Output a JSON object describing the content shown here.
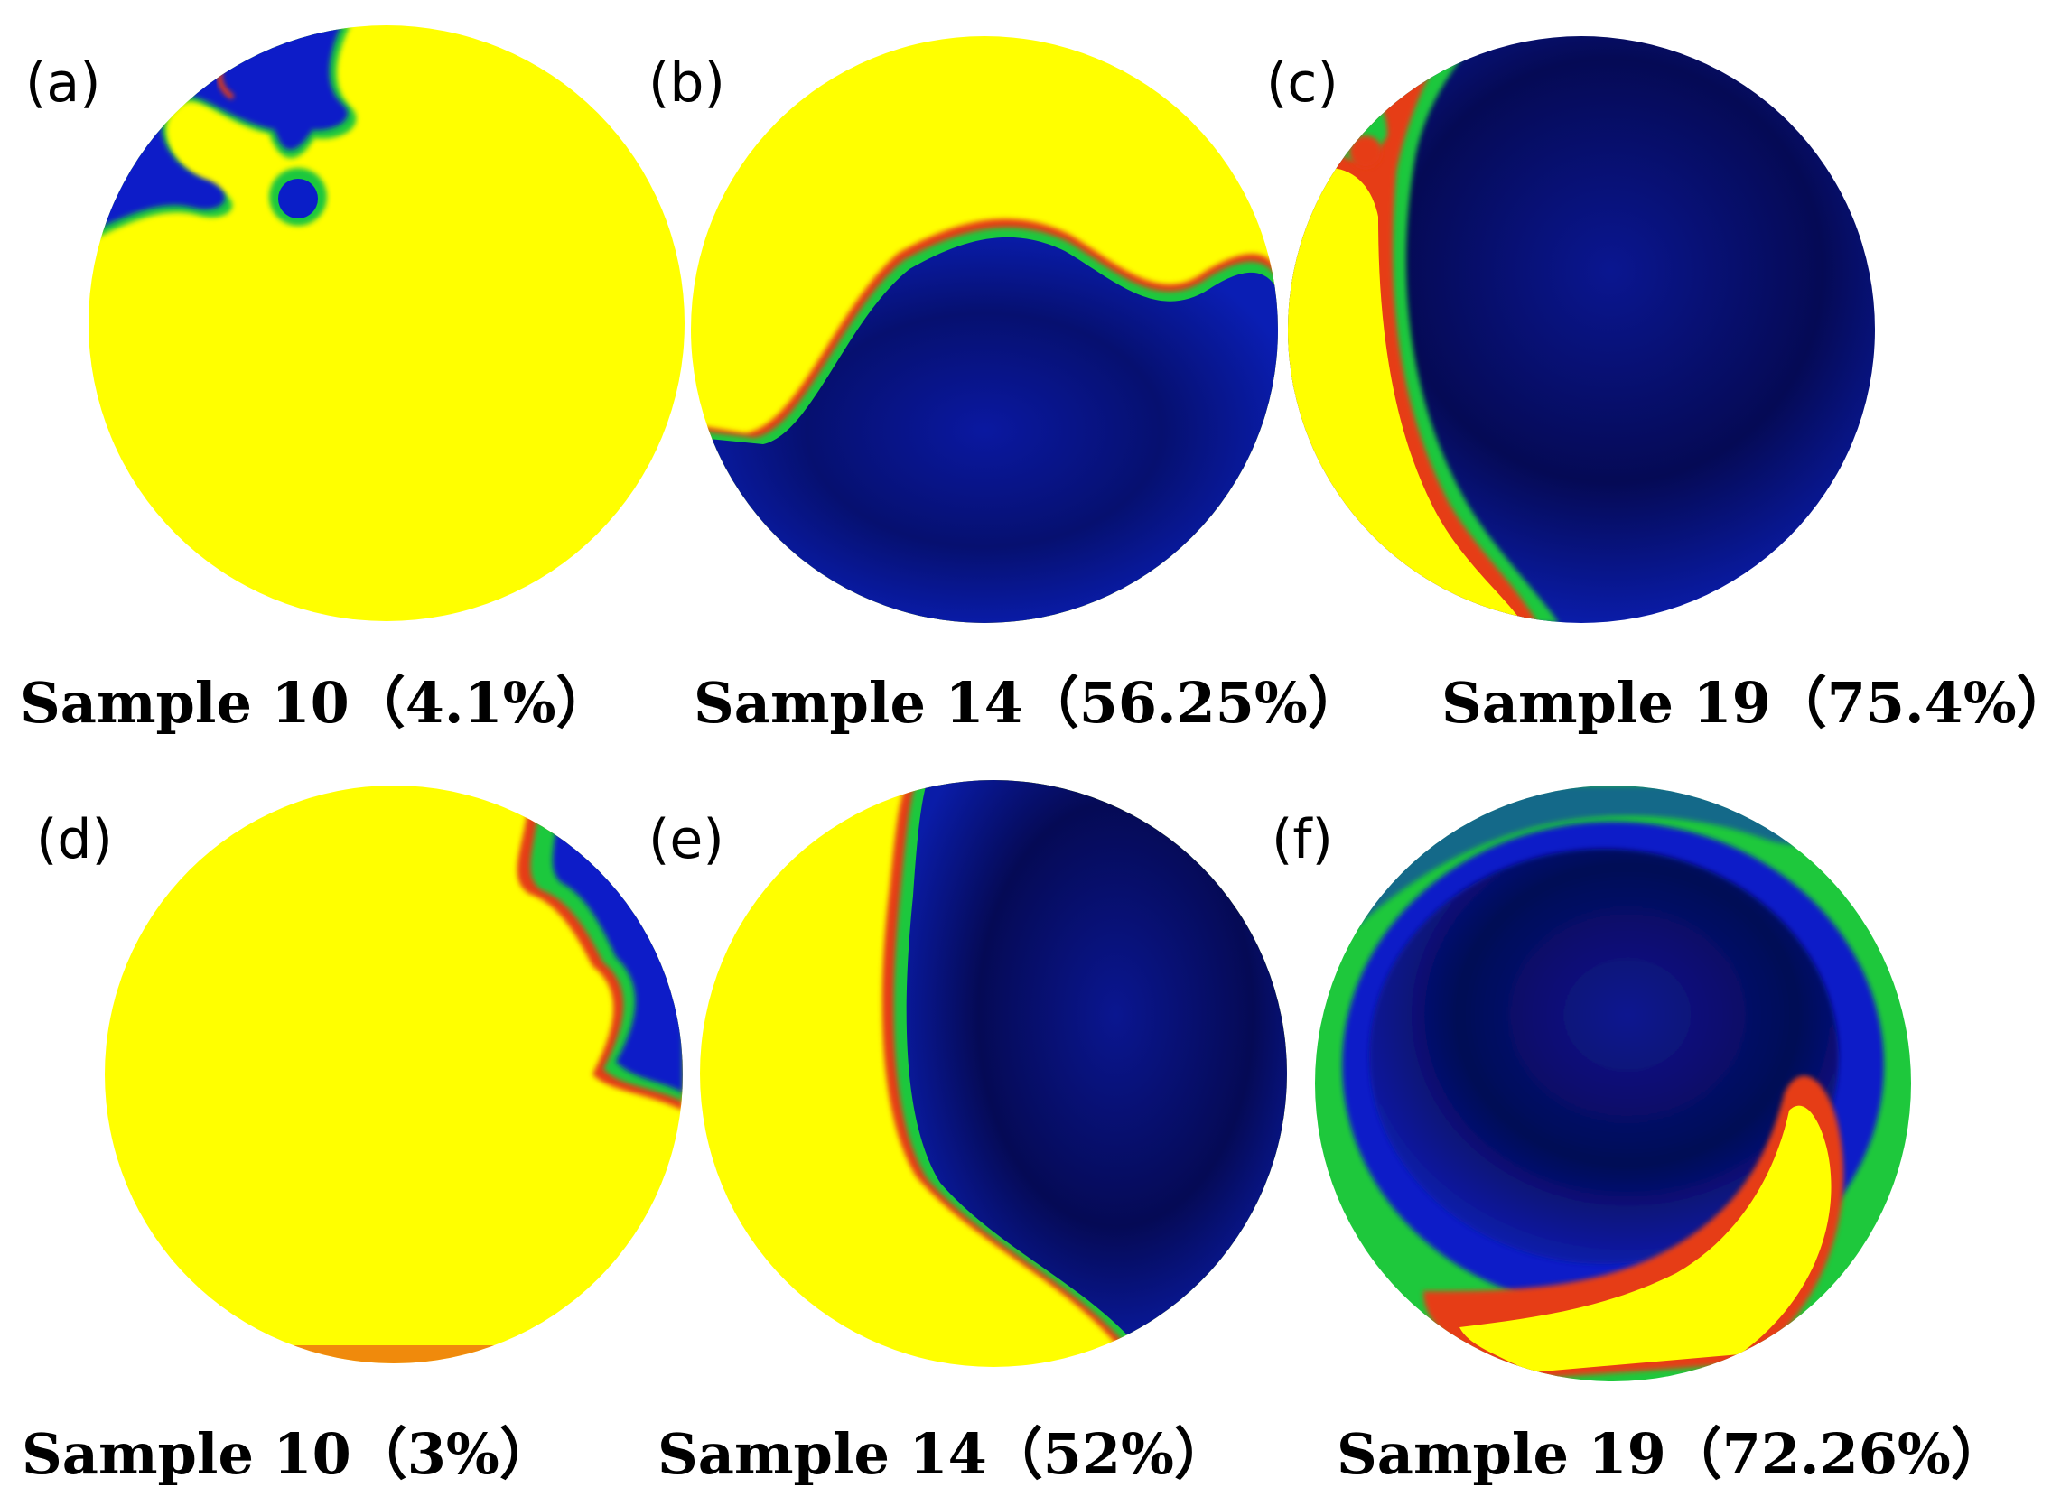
{
  "figure": {
    "panels": [
      {
        "letter": "(a)",
        "caption": "Sample 10（4.1%）"
      },
      {
        "letter": "(b)",
        "caption": "Sample 14（56.25%）"
      },
      {
        "letter": "(c)",
        "caption": "Sample 19（75.4%）"
      },
      {
        "letter": "(d)",
        "caption": "Sample 10（3%）"
      },
      {
        "letter": "(e)",
        "caption": "Sample 14（52%）"
      },
      {
        "letter": "(f)",
        "caption": "Sample 19（72.26%）"
      }
    ],
    "colors": {
      "yellow": "#ffff00",
      "dark_blue": "#050a5a",
      "blue": "#0a1ec8",
      "green": "#1ec83c",
      "red": "#e63c14"
    }
  }
}
